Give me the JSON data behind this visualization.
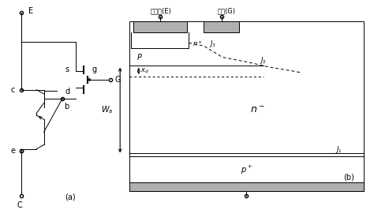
{
  "bg_color": "#ffffff",
  "fig_width": 4.74,
  "fig_height": 2.66,
  "label_a": "(a)",
  "label_b": "(b)",
  "text_E": "E",
  "text_c": "c",
  "text_b": "b",
  "text_e": "e",
  "text_C": "C",
  "text_s": "s",
  "text_d": "d",
  "text_g": "g",
  "text_G": "G",
  "text_fasheji": "发射极(E)",
  "text_jiji": "基极(G)",
  "text_nplus": "$n^+$",
  "text_J3": "$J_3$",
  "text_P": "$P$",
  "text_J2": "$J_2$",
  "text_xd": "$x_d$",
  "text_Wa": "$W_a$",
  "text_nminus": "$n^-$",
  "text_J1": "$J_1$",
  "text_pplus": "$p^+$"
}
